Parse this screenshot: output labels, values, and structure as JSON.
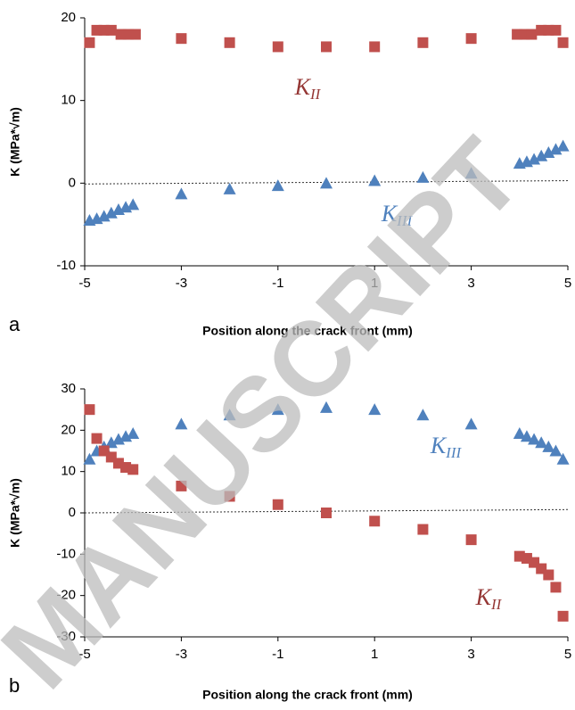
{
  "chart_data": [
    {
      "type": "scatter",
      "panel_label": "a",
      "x_label": "Position along the crack front (mm)",
      "y_label": "K (MPa*√m)",
      "xlim": [
        -5,
        5
      ],
      "xticks": [
        -5,
        -3,
        -1,
        1,
        3,
        5
      ],
      "ylim": [
        -10,
        20
      ],
      "yticks": [
        -10,
        0,
        10,
        20
      ],
      "series": [
        {
          "name": "KII",
          "marker": "square",
          "color": "#c0504d",
          "x": [
            -4.9,
            -4.75,
            -4.6,
            -4.45,
            -4.25,
            -4.1,
            -3.95,
            -3,
            -2,
            -1,
            0,
            1,
            2,
            3,
            3.95,
            4.1,
            4.25,
            4.45,
            4.6,
            4.75,
            4.9
          ],
          "values": [
            17,
            18.5,
            18.5,
            18.5,
            18,
            18,
            18,
            17.5,
            17,
            16.5,
            16.5,
            16.5,
            17,
            17.5,
            18,
            18,
            18,
            18.5,
            18.5,
            18.5,
            17
          ]
        },
        {
          "name": "KIII",
          "marker": "triangle",
          "color": "#4f81bd",
          "x": [
            -4.9,
            -4.75,
            -4.6,
            -4.45,
            -4.3,
            -4.15,
            -4.0,
            -3,
            -2,
            -1,
            0,
            1,
            2,
            3,
            4,
            4.15,
            4.3,
            4.45,
            4.6,
            4.75,
            4.9
          ],
          "values": [
            -4.5,
            -4.3,
            -4,
            -3.6,
            -3.2,
            -2.9,
            -2.6,
            -1.3,
            -0.7,
            -0.3,
            0,
            0.3,
            0.7,
            1.2,
            2.4,
            2.6,
            2.9,
            3.3,
            3.7,
            4.1,
            4.5
          ]
        }
      ],
      "trendline": {
        "x": [
          -5,
          5
        ],
        "values": [
          -0.1,
          0.3
        ]
      },
      "annotations": [
        {
          "text": "K",
          "sub": "II",
          "color": "#953735"
        },
        {
          "text": "K",
          "sub": "III",
          "color": "#4f81bd"
        }
      ]
    },
    {
      "type": "scatter",
      "panel_label": "b",
      "x_label": "Position along the crack front (mm)",
      "y_label": "K (MPa*√m)",
      "xlim": [
        -5,
        5
      ],
      "xticks": [
        -5,
        -3,
        -1,
        1,
        3,
        5
      ],
      "ylim": [
        -30,
        30
      ],
      "yticks": [
        -30,
        -20,
        -10,
        0,
        10,
        20,
        30
      ],
      "series": [
        {
          "name": "KIII",
          "marker": "triangle",
          "color": "#4f81bd",
          "x": [
            -4.9,
            -4.75,
            -4.6,
            -4.45,
            -4.3,
            -4.15,
            -4.0,
            -3,
            -2,
            -1,
            0,
            1,
            2,
            3,
            4,
            4.15,
            4.3,
            4.45,
            4.6,
            4.75,
            4.9
          ],
          "values": [
            13,
            15,
            16,
            17,
            17.8,
            18.5,
            19.2,
            21.5,
            23.7,
            25,
            25.5,
            25,
            23.7,
            21.5,
            19.2,
            18.5,
            17.8,
            17,
            16,
            15,
            13
          ]
        },
        {
          "name": "KII",
          "marker": "square",
          "color": "#c0504d",
          "x": [
            -4.9,
            -4.75,
            -4.6,
            -4.45,
            -4.3,
            -4.15,
            -4.0,
            -3,
            -2,
            -1,
            0,
            1,
            2,
            3,
            4,
            4.15,
            4.3,
            4.45,
            4.6,
            4.75,
            4.9
          ],
          "values": [
            25,
            18,
            15,
            13.5,
            12,
            11,
            10.5,
            6.5,
            4,
            2,
            0,
            -2,
            -4,
            -6.5,
            -10.5,
            -11,
            -12,
            -13.5,
            -15,
            -18,
            -25
          ]
        }
      ],
      "trendline": {
        "x": [
          -5,
          5
        ],
        "values": [
          0,
          0.8
        ]
      },
      "annotations": [
        {
          "text": "K",
          "sub": "III",
          "color": "#4f81bd"
        },
        {
          "text": "K",
          "sub": "II",
          "color": "#953735"
        }
      ]
    }
  ],
  "watermark": "MANUSCRIPT"
}
